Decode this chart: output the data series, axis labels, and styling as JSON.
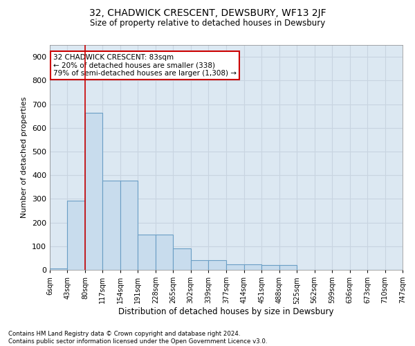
{
  "title": "32, CHADWICK CRESCENT, DEWSBURY, WF13 2JF",
  "subtitle": "Size of property relative to detached houses in Dewsbury",
  "xlabel": "Distribution of detached houses by size in Dewsbury",
  "ylabel": "Number of detached properties",
  "bar_color": "#c8dced",
  "bar_edge_color": "#6a9ec5",
  "background_color": "#dce8f2",
  "grid_color": "#c8d8e8",
  "annotation_text": "32 CHADWICK CRESCENT: 83sqm\n← 20% of detached houses are smaller (338)\n79% of semi-detached houses are larger (1,308) →",
  "property_line_x": 80,
  "bin_edges": [
    6,
    43,
    80,
    117,
    154,
    191,
    228,
    265,
    302,
    339,
    377,
    414,
    451,
    488,
    525,
    562,
    599,
    636,
    673,
    710,
    747
  ],
  "bin_labels": [
    "6sqm",
    "43sqm",
    "80sqm",
    "117sqm",
    "154sqm",
    "191sqm",
    "228sqm",
    "265sqm",
    "302sqm",
    "339sqm",
    "377sqm",
    "414sqm",
    "451sqm",
    "488sqm",
    "525sqm",
    "562sqm",
    "599sqm",
    "636sqm",
    "673sqm",
    "710sqm",
    "747sqm"
  ],
  "bar_heights": [
    5,
    293,
    665,
    378,
    378,
    148,
    148,
    90,
    40,
    40,
    22,
    22,
    20,
    20,
    0,
    0,
    0,
    0,
    0,
    0
  ],
  "ylim": [
    0,
    950
  ],
  "yticks": [
    0,
    100,
    200,
    300,
    400,
    500,
    600,
    700,
    800,
    900
  ],
  "footnote": "Contains HM Land Registry data © Crown copyright and database right 2024.\nContains public sector information licensed under the Open Government Licence v3.0."
}
